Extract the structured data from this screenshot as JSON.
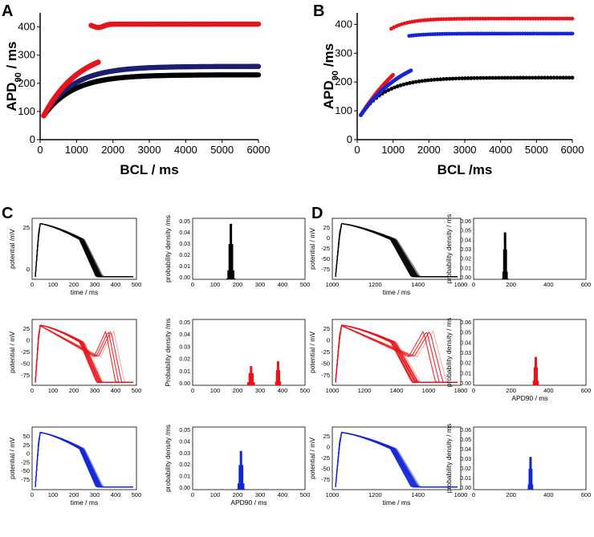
{
  "panels": {
    "A": "A",
    "B": "B",
    "C": "C",
    "D": "D"
  },
  "colors": {
    "black": "#000000",
    "red": "#e8141b",
    "blue": "#1326d6",
    "navy": "#1c1f6e"
  },
  "chart_data": [
    {
      "panel": "A",
      "type": "scatter",
      "xlabel": "BCL / ms",
      "ylabel": "APD90 / ms",
      "ylabel_main": "APD",
      "ylabel_sub": "90",
      "ylabel_unit": " / ms",
      "xlim": [
        0,
        6000
      ],
      "ylim": [
        0,
        450
      ],
      "xticks": [
        0,
        1000,
        2000,
        3000,
        4000,
        5000,
        6000
      ],
      "yticks": [
        0,
        100,
        200,
        300,
        400
      ],
      "series": [
        {
          "name": "black",
          "color": "#000000",
          "segments": [
            {
              "x0": 100,
              "x1": 6000,
              "ymin": 85,
              "ymax": 230,
              "tau": 800
            }
          ]
        },
        {
          "name": "navy",
          "color": "#1c1f6e",
          "segments": [
            {
              "x0": 100,
              "x1": 6000,
              "ymin": 85,
              "ymax": 260,
              "tau": 800
            }
          ]
        },
        {
          "name": "red",
          "color": "#e8141b",
          "segments": [
            {
              "x0": 100,
              "x1": 1600,
              "ymin": 85,
              "ymax": 330,
              "tau": 1000
            },
            {
              "x0": 1400,
              "x1": 6000,
              "y": 410,
              "dip": 1600
            }
          ]
        }
      ]
    },
    {
      "panel": "B",
      "type": "scatter",
      "xlabel": "BCL /ms",
      "ylabel": "APD90 /ms",
      "ylabel_main": "APD",
      "ylabel_sub": "90",
      "ylabel_unit": " /ms",
      "xlim": [
        0,
        6000
      ],
      "ylim": [
        0,
        440
      ],
      "xticks": [
        0,
        1000,
        2000,
        3000,
        4000,
        5000,
        6000
      ],
      "yticks": [
        0,
        100,
        200,
        300,
        400
      ],
      "series": [
        {
          "name": "black",
          "color": "#000000",
          "segments": [
            {
              "x0": 100,
              "x1": 6000,
              "ymin": 85,
              "ymax": 215,
              "tau": 700
            }
          ]
        },
        {
          "name": "red",
          "color": "#e8141b",
          "segments": [
            {
              "x0": 100,
              "x1": 1000,
              "ymin": 85,
              "ymax": 440,
              "tau": 1800
            },
            {
              "x0": 950,
              "x1": 6000,
              "y": 420,
              "start": 385,
              "dip": 1200
            }
          ]
        },
        {
          "name": "blue",
          "color": "#1326d6",
          "segments": [
            {
              "x0": 100,
              "x1": 1500,
              "ymin": 85,
              "ymax": 320,
              "tau": 1300
            },
            {
              "x0": 1450,
              "x1": 6000,
              "y": 368,
              "start": 360
            }
          ]
        }
      ]
    }
  ],
  "traces": [
    {
      "panel": "C",
      "row": 0,
      "color": "#000000",
      "ylabel": "potential /mV",
      "xlabel": "time / ms",
      "xticks": [
        "0",
        "100",
        "200",
        "300",
        "400",
        "500"
      ],
      "yticks": [
        "25",
        "0"
      ],
      "hist_ylabel": "probability density /ms",
      "hist_xticks": [
        "0",
        "100",
        "200",
        "300",
        "400",
        "500"
      ],
      "hist_yticks": [
        "0.05",
        "0.04",
        "0.03",
        "0.02",
        "0.01",
        "0.00"
      ],
      "hist_xlabel": ""
    },
    {
      "panel": "C",
      "row": 1,
      "color": "#e8141b",
      "ylabel": "potential / mV",
      "xlabel": "",
      "xticks": [
        "0",
        "100",
        "200",
        "300",
        "400",
        "500"
      ],
      "yticks": [
        "25",
        "0",
        "-25",
        "-50",
        "-75"
      ],
      "hist_ylabel": "Probability density /ms",
      "hist_xticks": [
        "0",
        "100",
        "200",
        "300",
        "400",
        "500"
      ],
      "hist_yticks": [
        "0.05",
        "0.04",
        "0.03",
        "0.02",
        "0.01",
        "0.00"
      ],
      "hist_xlabel": ""
    },
    {
      "panel": "C",
      "row": 2,
      "color": "#1326d6",
      "ylabel": "potential / mV",
      "xlabel": "time / ms",
      "xticks": [
        "0",
        "100",
        "200",
        "300",
        "400",
        "500"
      ],
      "yticks": [
        "50",
        "25",
        "0",
        "-25",
        "-50",
        "-75"
      ],
      "hist_ylabel": "probability density /ms",
      "hist_xticks": [
        "0",
        "100",
        "200",
        "300",
        "400",
        "500"
      ],
      "hist_yticks": [
        "0.05",
        "0.04",
        "0.03",
        "0.02",
        "0.01",
        "0.00"
      ],
      "hist_xlabel": "APD90 / ms"
    },
    {
      "panel": "D",
      "row": 0,
      "color": "#000000",
      "ylabel": "potential / mV",
      "xlabel": "time / ms",
      "xticks": [
        "1000",
        "1200",
        "1400",
        "1600"
      ],
      "yticks": [
        "25",
        "0",
        "-25",
        "-50",
        "-75"
      ],
      "hist_ylabel": "probability density / ms",
      "hist_xticks": [
        "0",
        "200",
        "400",
        "600"
      ],
      "hist_yticks": [
        "0.06",
        "0.05",
        "0.04",
        "0.03",
        "0.02",
        "0.01",
        "0.00"
      ],
      "hist_xlabel": ""
    },
    {
      "panel": "D",
      "row": 1,
      "color": "#e8141b",
      "ylabel": "potential / mV",
      "xlabel": "",
      "xticks": [
        "1000",
        "1200",
        "1400",
        "1600",
        "1800"
      ],
      "yticks": [
        "25",
        "0",
        "-25",
        "-50",
        "-75"
      ],
      "hist_ylabel": "probability density / ms",
      "hist_xticks": [
        "0",
        "200",
        "400",
        "600"
      ],
      "hist_yticks": [
        "0.06",
        "0.05",
        "0.04",
        "0.03",
        "0.02",
        "0.01",
        "0.00"
      ],
      "hist_xlabel": "APD90 / ms"
    },
    {
      "panel": "D",
      "row": 2,
      "color": "#1326d6",
      "ylabel": "potential / mV",
      "xlabel": "time / ms",
      "xticks": [
        "1000",
        "1200",
        "1400",
        "1600"
      ],
      "yticks": [
        "25",
        "0",
        "-25",
        "-50",
        "-75"
      ],
      "hist_ylabel": "probability density / ms",
      "hist_xticks": [
        "0",
        "200",
        "400",
        "600"
      ],
      "hist_yticks": [
        "0.06",
        "0.05",
        "0.04",
        "0.03",
        "0.02",
        "0.01",
        "0.00"
      ],
      "hist_xlabel": ""
    }
  ]
}
